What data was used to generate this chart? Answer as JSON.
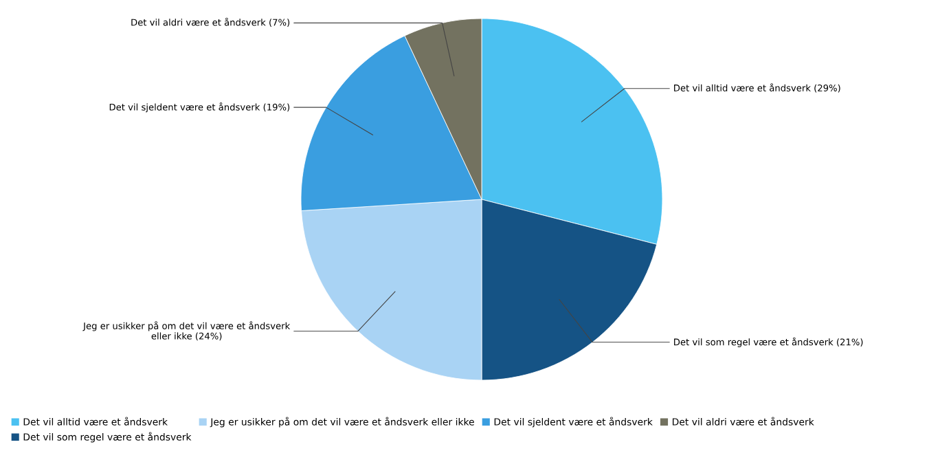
{
  "chart_data": {
    "type": "pie",
    "categories": [
      "Det vil alltid være et åndsverk",
      "Det vil som regel være et åndsverk",
      "Jeg er usikker på om det vil være et åndsverk eller ikke",
      "Det vil sjeldent være et åndsverk",
      "Det vil aldri være et åndsverk"
    ],
    "values": [
      29,
      21,
      24,
      19,
      7
    ],
    "colors": [
      "#4bc1f1",
      "#155385",
      "#a9d3f4",
      "#3a9ee0",
      "#737260"
    ],
    "value_labels": [
      "Det vil alltid være et åndsverk (29%)",
      "Det vil som regel være et åndsverk (21%)",
      "Jeg er usikker på om det vil være et åndsverk\neller ikke (24%)",
      "Det vil sjeldent være et åndsverk (19%)",
      "Det vil aldri være et åndsverk (7%)"
    ],
    "legend": "bottom"
  }
}
